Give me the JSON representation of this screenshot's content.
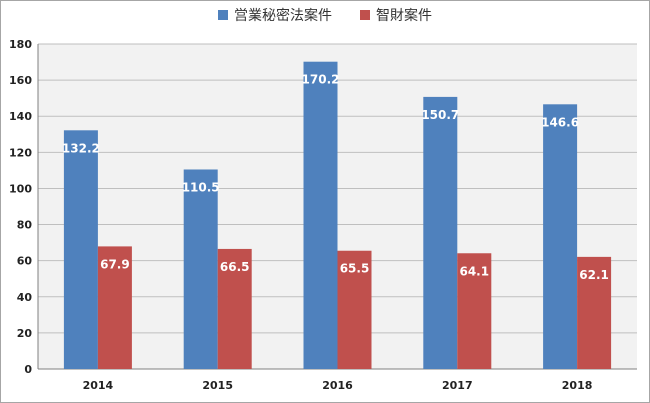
{
  "chart_data": {
    "type": "bar",
    "categories": [
      "2014",
      "2015",
      "2016",
      "2017",
      "2018"
    ],
    "series": [
      {
        "name": "営業秘密法案件",
        "color": "#4f81bd",
        "values": [
          132.2,
          110.5,
          170.2,
          150.7,
          146.6
        ]
      },
      {
        "name": "智財案件",
        "color": "#c0504d",
        "values": [
          67.9,
          66.5,
          65.5,
          64.1,
          62.1
        ]
      }
    ],
    "ylim": [
      0,
      180
    ],
    "yticks": [
      0,
      20,
      40,
      60,
      80,
      100,
      120,
      140,
      160,
      180
    ],
    "grid": true,
    "legend_position": "top",
    "data_labels": true
  }
}
